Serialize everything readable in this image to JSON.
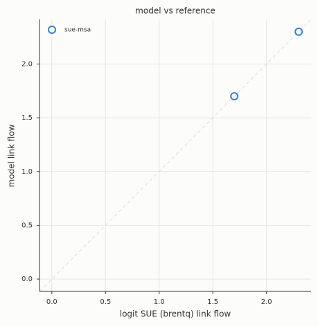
{
  "chart_data": {
    "type": "scatter",
    "title": "model vs reference",
    "x_label": "logit SUE (brentq) link flow",
    "y_label": "model link flow",
    "series": [
      {
        "name": "sue-msa",
        "color": "#3a7fcc",
        "x": [
          1.7,
          2.3
        ],
        "values": [
          1.7,
          2.3
        ]
      }
    ],
    "xlim": [
      -0.115,
      2.415
    ],
    "ylim": [
      -0.115,
      2.415
    ],
    "xticks": [
      {
        "value": 0,
        "label": "0.0"
      },
      {
        "value": 0.5,
        "label": "0.5"
      },
      {
        "value": 1,
        "label": "1.0"
      },
      {
        "value": 1.5,
        "label": "1.5"
      },
      {
        "value": 2,
        "label": "2.0"
      }
    ],
    "yticks": [
      {
        "value": 0,
        "label": "0.0"
      },
      {
        "value": 0.5,
        "label": "0.5"
      },
      {
        "value": 1,
        "label": "1.0"
      },
      {
        "value": 1.5,
        "label": "1.5"
      },
      {
        "value": 2,
        "label": "2.0"
      }
    ],
    "grid": true,
    "legend": "upper left"
  }
}
